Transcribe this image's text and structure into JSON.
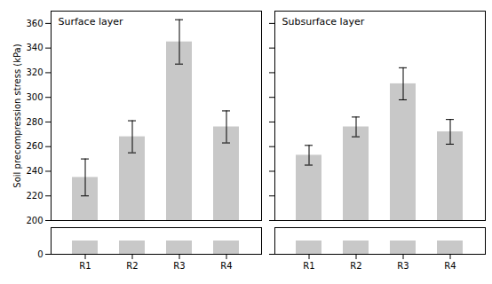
{
  "chart_data": [
    {
      "type": "bar",
      "title": "Surface layer",
      "categories": [
        "R1",
        "R2",
        "R3",
        "R4"
      ],
      "values": [
        235,
        268,
        345,
        276
      ],
      "errors": [
        15,
        13,
        18,
        13
      ],
      "ylabel": "Soil precompression stress (kPa)",
      "ylim": [
        200,
        370
      ],
      "yticks": [
        200,
        220,
        240,
        260,
        280,
        300,
        320,
        340,
        360
      ],
      "lower_values": [
        15,
        15,
        15,
        15
      ],
      "lower_ylim": [
        0,
        30
      ],
      "lower_yticks": [
        0
      ],
      "color": "#c8c8c8"
    },
    {
      "type": "bar",
      "title": "Subsurface layer",
      "categories": [
        "R1",
        "R2",
        "R3",
        "R4"
      ],
      "values": [
        253,
        276,
        311,
        272
      ],
      "errors": [
        8,
        8,
        13,
        10
      ],
      "ylim": [
        200,
        370
      ],
      "yticks": [
        200,
        220,
        240,
        260,
        280,
        300,
        320,
        340,
        360
      ],
      "lower_values": [
        15,
        15,
        15,
        15
      ],
      "lower_ylim": [
        0,
        30
      ],
      "lower_yticks": [
        0
      ],
      "tick_labels": "x",
      "color": "#c8c8c8"
    }
  ]
}
